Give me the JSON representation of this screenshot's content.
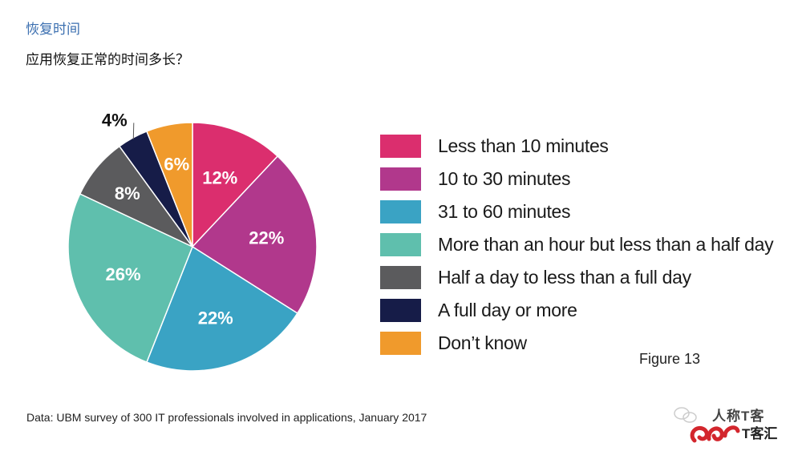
{
  "header": {
    "title": "恢复时间",
    "question": "应用恢复正常的时间多长？"
  },
  "chart_data": {
    "type": "pie",
    "categories": [
      "Less than 10 minutes",
      "10 to 30 minutes",
      "31 to 60 minutes",
      "More than an hour but less than a half day",
      "Half a day to less than a full day",
      "A full day or more",
      "Don’t know"
    ],
    "values": [
      12,
      22,
      22,
      26,
      8,
      4,
      6
    ],
    "labels": [
      "12%",
      "22%",
      "22%",
      "26%",
      "8%",
      "4%",
      "6%"
    ],
    "colors": [
      "#db2e6e",
      "#b1388c",
      "#3aa3c4",
      "#5fbfad",
      "#5b5b5d",
      "#161c48",
      "#f09a2c"
    ],
    "start_angle_deg": 0,
    "direction": "clockwise",
    "legend_position": "right"
  },
  "figure_label": "Figure 13",
  "source": "Data: UBM survey of 300 IT professionals involved in applications, January 2017",
  "watermark": {
    "text_top": "人称T客",
    "text_bottom": "T客汇",
    "icon": "wechat-logo-icon"
  }
}
